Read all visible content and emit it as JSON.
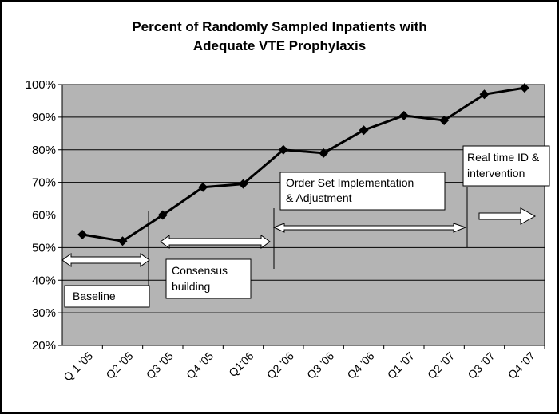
{
  "chart_data": {
    "type": "line",
    "title_lines": [
      "Percent of Randomly Sampled Inpatients with",
      "Adequate VTE Prophylaxis"
    ],
    "categories": [
      "Q 1 '05",
      "Q2 '05",
      "Q3 '05",
      "Q4 '05",
      "Q1'06",
      "Q2 '06",
      "Q3 '06",
      "Q4 '06",
      "Q1 '07",
      "Q2 '07",
      "Q3 '07",
      "Q4 '07"
    ],
    "y_ticks": [
      "20%",
      "30%",
      "40%",
      "50%",
      "60%",
      "70%",
      "80%",
      "90%",
      "100%"
    ],
    "ylim": [
      20,
      100
    ],
    "grid": true,
    "series": [
      {
        "values": [
          54,
          52,
          60,
          68.5,
          69.5,
          80,
          79,
          86,
          90.5,
          89,
          97,
          99
        ]
      }
    ],
    "annotations": [
      {
        "label_lines": [
          "Baseline"
        ]
      },
      {
        "label_lines": [
          "Consensus",
          "building"
        ]
      },
      {
        "label_lines": [
          "Order Set Implementation",
          "& Adjustment"
        ]
      },
      {
        "label_lines": [
          "Real time ID &",
          "intervention"
        ]
      }
    ]
  },
  "colors": {
    "plot_bg": "#b4b4b4",
    "line": "#000000",
    "arrow_fill": "#ffffff"
  }
}
